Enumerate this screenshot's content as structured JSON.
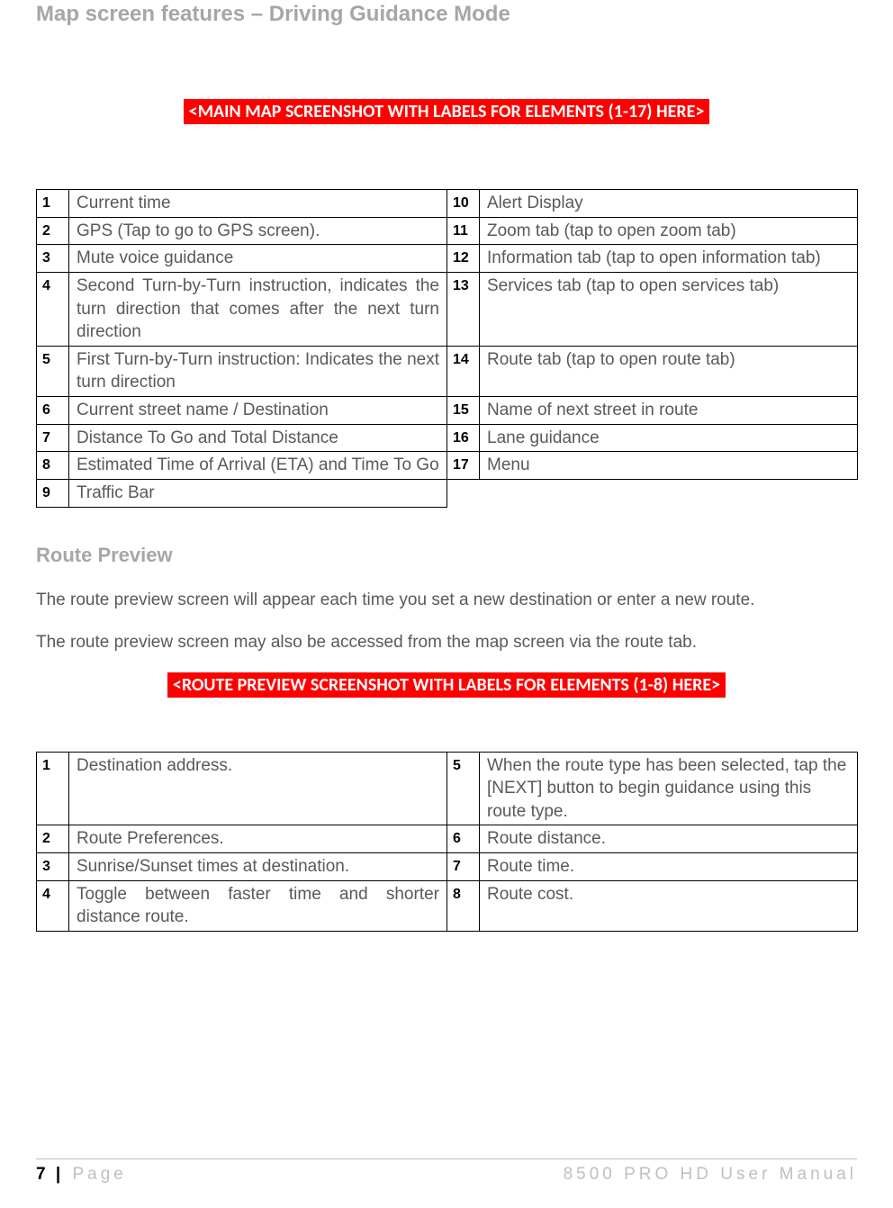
{
  "headings": {
    "h1": "Map screen features – Driving Guidance Mode",
    "h2": "Route Preview"
  },
  "banners": {
    "main_map": "<MAIN MAP SCREENSHOT WITH LABELS FOR ELEMENTS (1-17) HERE>",
    "route_preview": "<ROUTE PREVIEW SCREENSHOT WITH LABELS FOR ELEMENTS (1-8) HERE>"
  },
  "table1": {
    "rows": [
      {
        "n1": "1",
        "d1": "Current time",
        "n2": "10",
        "d2": "Alert Display",
        "j1": false,
        "j2": false
      },
      {
        "n1": "2",
        "d1": "GPS (Tap to go to GPS screen).",
        "n2": "11",
        "d2": "Zoom tab (tap to open zoom tab)",
        "j1": false,
        "j2": false
      },
      {
        "n1": "3",
        "d1": "Mute voice guidance",
        "n2": "12",
        "d2": "Information tab (tap to open information tab)",
        "j1": false,
        "j2": false
      },
      {
        "n1": "4",
        "d1": "Second Turn-by-Turn instruction, indicates the turn direction that comes after the next turn direction",
        "n2": "13",
        "d2": "Services tab (tap to open services tab)",
        "j1": true,
        "j2": false
      },
      {
        "n1": "5",
        "d1": "First Turn-by-Turn instruction: Indicates the next turn direction",
        "n2": "14",
        "d2": "Route tab (tap to open route tab)",
        "j1": true,
        "j2": false
      },
      {
        "n1": "6",
        "d1": "Current street name / Destination",
        "n2": "15",
        "d2": "Name of next street in route",
        "j1": false,
        "j2": false
      },
      {
        "n1": "7",
        "d1": "Distance To Go and Total Distance",
        "n2": "16",
        "d2": "Lane guidance",
        "j1": true,
        "j2": false
      },
      {
        "n1": "8",
        "d1": "Estimated Time of Arrival (ETA) and Time To Go",
        "n2": "17",
        "d2": "Menu",
        "j1": true,
        "j2": false
      },
      {
        "n1": "9",
        "d1": "Traffic Bar",
        "n2": "",
        "d2": "",
        "j1": false,
        "j2": false,
        "empty_right": true
      }
    ]
  },
  "paragraphs": {
    "p1": "The route preview screen will appear each time you set a new destination or enter a new route.",
    "p2": "The route preview screen may also be accessed from the map screen via the route tab."
  },
  "table2": {
    "rows": [
      {
        "n1": "1",
        "d1": "Destination address.",
        "n2": "5",
        "d2": "When the route type has been selected, tap the [NEXT] button to begin guidance using this route type.",
        "j1": false,
        "j2": false
      },
      {
        "n1": "2",
        "d1": "Route Preferences.",
        "n2": "6",
        "d2": "Route distance.",
        "j1": false,
        "j2": false
      },
      {
        "n1": "3",
        "d1": "Sunrise/Sunset times at destination.",
        "n2": "7",
        "d2": "Route time.",
        "j1": true,
        "j2": false
      },
      {
        "n1": "4",
        "d1": "Toggle between faster time and shorter distance route.",
        "n2": "8",
        "d2": "Route cost.",
        "j1": true,
        "j2": false
      }
    ]
  },
  "footer": {
    "page_number": "7",
    "bar": " | ",
    "page_label": "Page",
    "doc_title": "8500 PRO HD User Manual"
  },
  "colors": {
    "heading_gray": "#a6a6a6",
    "body_gray": "#595959",
    "banner_bg": "#ff0000",
    "banner_fg": "#ffffff",
    "border": "#000000",
    "footer_gray": "#bfbfbf",
    "background": "#ffffff"
  }
}
